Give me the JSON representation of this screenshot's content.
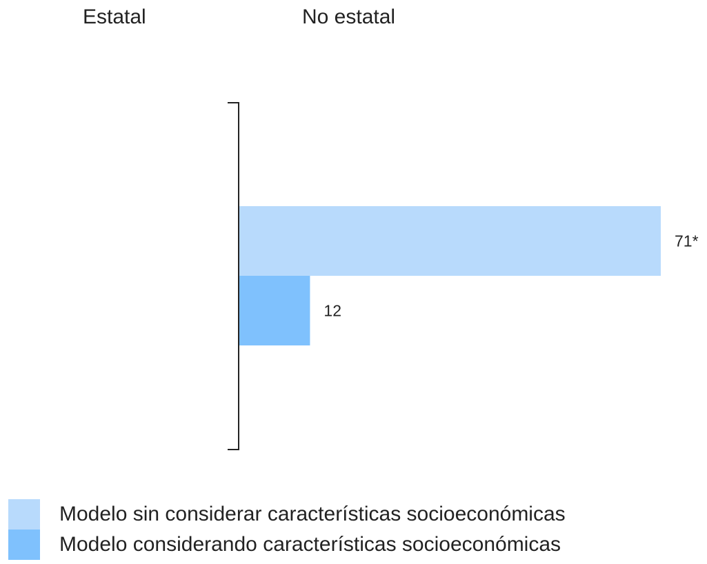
{
  "headers": {
    "left": "Estatal",
    "right": "No estatal"
  },
  "chart_data": {
    "type": "bar",
    "orientation": "horizontal",
    "baseline": "center",
    "series": [
      {
        "name": "Modelo sin considerar características socioeconómicas",
        "value": 71,
        "label": "71*",
        "color": "#b8dafc"
      },
      {
        "name": "Modelo considerando características socioeconómicas",
        "value": 12,
        "label": "12",
        "color": "#7fc1fd"
      }
    ],
    "xlim": [
      0,
      71
    ],
    "grid": false,
    "legend_position": "bottom-left"
  }
}
